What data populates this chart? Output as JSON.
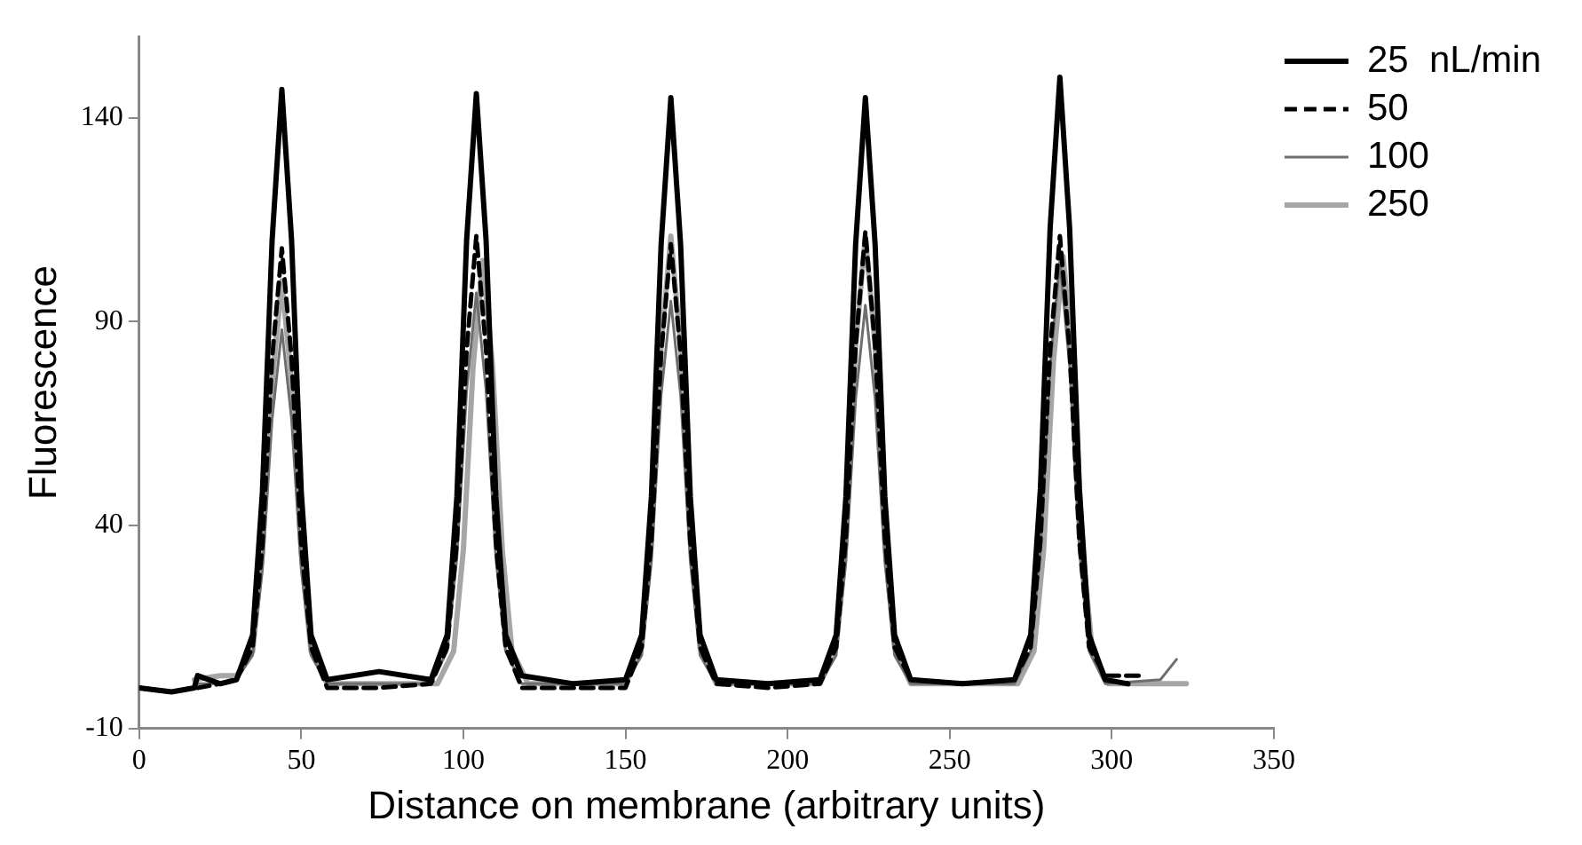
{
  "chart_data": {
    "type": "line",
    "xlabel": "Distance on membrane (arbitrary units)",
    "ylabel": "Fluorescence",
    "xlim": [
      0,
      350
    ],
    "xticks": [
      0,
      50,
      100,
      150,
      200,
      250,
      300,
      350
    ],
    "ylim": [
      -10,
      160
    ],
    "yticks": [
      -10,
      40,
      90,
      140
    ],
    "grid": false,
    "legend": "top right",
    "marker": "none",
    "series": [
      {
        "name": "25  nL/min",
        "color": "#000000",
        "line_style": "solid",
        "x": [
          0,
          10,
          17,
          18,
          25,
          30,
          35,
          38,
          41,
          44,
          47,
          50,
          53,
          58,
          74,
          90,
          95,
          98,
          101,
          104,
          107,
          110,
          113,
          118,
          134,
          150,
          155,
          158,
          161,
          164,
          167,
          170,
          173,
          178,
          194,
          210,
          215,
          218,
          221,
          224,
          227,
          230,
          233,
          238,
          254,
          270,
          275,
          278,
          281,
          284,
          287,
          290,
          293,
          298,
          305
        ],
        "values": [
          0,
          -1,
          0,
          3,
          1,
          2,
          13,
          48,
          110,
          147,
          110,
          48,
          13,
          2,
          4,
          2,
          13,
          47,
          110,
          146,
          110,
          47,
          13,
          3,
          1,
          2,
          13,
          47,
          109,
          145,
          109,
          47,
          13,
          2,
          1,
          2,
          13,
          47,
          109,
          145,
          109,
          47,
          13,
          2,
          1,
          2,
          13,
          49,
          113,
          150,
          113,
          49,
          13,
          2,
          1
        ]
      },
      {
        "name": "50",
        "color": "#000000",
        "line_style": "dashed",
        "x": [
          0,
          10,
          17,
          18,
          25,
          30,
          35,
          38,
          41,
          44,
          47,
          50,
          53,
          58,
          74,
          90,
          95,
          98,
          101,
          104,
          107,
          110,
          113,
          118,
          134,
          150,
          155,
          158,
          161,
          164,
          167,
          170,
          173,
          178,
          194,
          210,
          215,
          218,
          221,
          224,
          227,
          230,
          233,
          238,
          254,
          270,
          275,
          278,
          281,
          284,
          287,
          290,
          293,
          298,
          310
        ],
        "values": [
          0,
          -1,
          0,
          0,
          1,
          2,
          10,
          35,
          81,
          108,
          81,
          35,
          10,
          0,
          0,
          1,
          10,
          36,
          83,
          111,
          83,
          36,
          10,
          0,
          0,
          0,
          10,
          36,
          82,
          109,
          82,
          36,
          10,
          1,
          0,
          1,
          10,
          37,
          84,
          112,
          84,
          37,
          10,
          2,
          1,
          2,
          10,
          36,
          83,
          111,
          83,
          36,
          10,
          3,
          3
        ]
      },
      {
        "name": "100",
        "color": "#6e6e6e",
        "line_style": "solid",
        "x": [
          17,
          25,
          30,
          35,
          38,
          41,
          44,
          47,
          50,
          53,
          58,
          74,
          90,
          95,
          98,
          101,
          104,
          107,
          110,
          113,
          118,
          134,
          150,
          155,
          158,
          161,
          164,
          167,
          170,
          173,
          178,
          194,
          210,
          215,
          218,
          221,
          224,
          227,
          230,
          233,
          238,
          254,
          270,
          275,
          278,
          281,
          284,
          287,
          290,
          293,
          298,
          315,
          320
        ],
        "values": [
          1,
          1,
          2,
          8,
          29,
          66,
          88,
          66,
          29,
          8,
          1,
          1,
          1,
          9,
          32,
          73,
          97,
          73,
          32,
          9,
          1,
          1,
          1,
          8,
          31,
          72,
          95,
          72,
          31,
          8,
          1,
          1,
          1,
          8,
          31,
          71,
          94,
          71,
          31,
          8,
          1,
          1,
          1,
          9,
          34,
          79,
          105,
          79,
          34,
          9,
          1,
          2,
          7
        ]
      },
      {
        "name": "250",
        "color": "#a6a6a6",
        "line_style": "solid",
        "x": [
          17,
          25,
          30,
          35,
          38,
          41,
          44,
          47,
          50,
          53,
          58,
          74,
          92,
          97,
          100,
          103,
          106,
          109,
          112,
          115,
          120,
          134,
          150,
          155,
          158,
          161,
          164,
          167,
          170,
          173,
          178,
          194,
          210,
          215,
          218,
          221,
          224,
          227,
          230,
          233,
          238,
          254,
          271,
          276,
          279,
          282,
          285,
          288,
          291,
          294,
          299,
          323
        ],
        "values": [
          2,
          3,
          3,
          9,
          33,
          75,
          100,
          75,
          33,
          9,
          1,
          1,
          1,
          9,
          34,
          79,
          105,
          79,
          34,
          9,
          1,
          1,
          1,
          10,
          36,
          84,
          111,
          84,
          36,
          10,
          1,
          1,
          1,
          10,
          36,
          84,
          111,
          84,
          36,
          10,
          1,
          1,
          1,
          9,
          34,
          80,
          106,
          80,
          34,
          9,
          1,
          1
        ]
      }
    ]
  }
}
